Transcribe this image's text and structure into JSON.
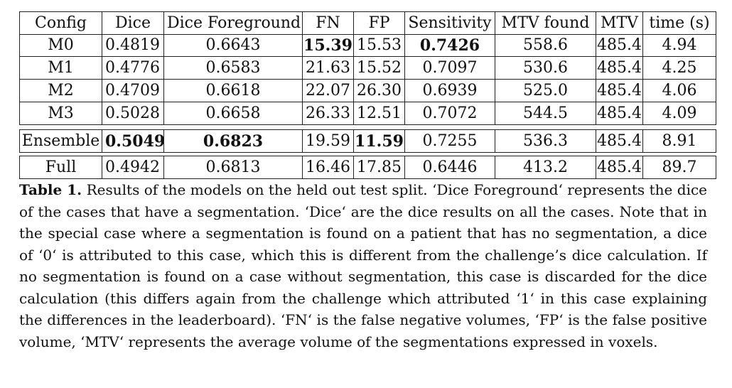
{
  "table": {
    "headers": [
      "Config",
      "Dice",
      "Dice Foreground",
      "FN",
      "FP",
      "Sensitivity",
      "MTV found",
      "MTV",
      "time (s)"
    ],
    "rows": [
      {
        "cells": [
          "M0",
          "0.4819",
          "0.6643",
          "15.39",
          "15.53",
          "0.7426",
          "558.6",
          "485.4",
          "4.94"
        ],
        "bold": [
          3,
          5
        ]
      },
      {
        "cells": [
          "M1",
          "0.4776",
          "0.6583",
          "21.63",
          "15.52",
          "0.7097",
          "530.6",
          "485.4",
          "4.25"
        ],
        "bold": []
      },
      {
        "cells": [
          "M2",
          "0.4709",
          "0.6618",
          "22.07",
          "26.30",
          "0.6939",
          "525.0",
          "485.4",
          "4.06"
        ],
        "bold": []
      },
      {
        "cells": [
          "M3",
          "0.5028",
          "0.6658",
          "26.33",
          "12.51",
          "0.7072",
          "544.5",
          "485.4",
          "4.09"
        ],
        "bold": []
      },
      {
        "cells": [
          "Ensemble",
          "0.5049",
          "0.6823",
          "19.59",
          "11.59",
          "0.7255",
          "536.3",
          "485.4",
          "8.91"
        ],
        "bold": [
          1,
          2,
          4
        ]
      },
      {
        "cells": [
          "Full",
          "0.4942",
          "0.6813",
          "16.46",
          "17.85",
          "0.6446",
          "413.2",
          "485.4",
          "89.7"
        ],
        "bold": []
      }
    ]
  },
  "caption": {
    "label": "Table 1.",
    "text": "Results of the models on the held out test split. ‘Dice Foreground‘ represents the dice of the cases that have a segmentation. ‘Dice‘ are the dice results on all the cases. Note that in the special case where a segmentation is found on a patient that has no segmentation, a dice of ‘0‘ is attributed to this case, which this is different from the challenge’s dice calculation. If no segmentation is found on a case without segmentation, this case is discarded for the dice calculation (this differs again from the challenge which attributed ‘1‘ in this case explaining the differences in the leaderboard). ‘FN‘ is the false negative volumes, ‘FP‘ is the false positive volume, ‘MTV‘ represents the average volume of the segmentations expressed in voxels."
  }
}
